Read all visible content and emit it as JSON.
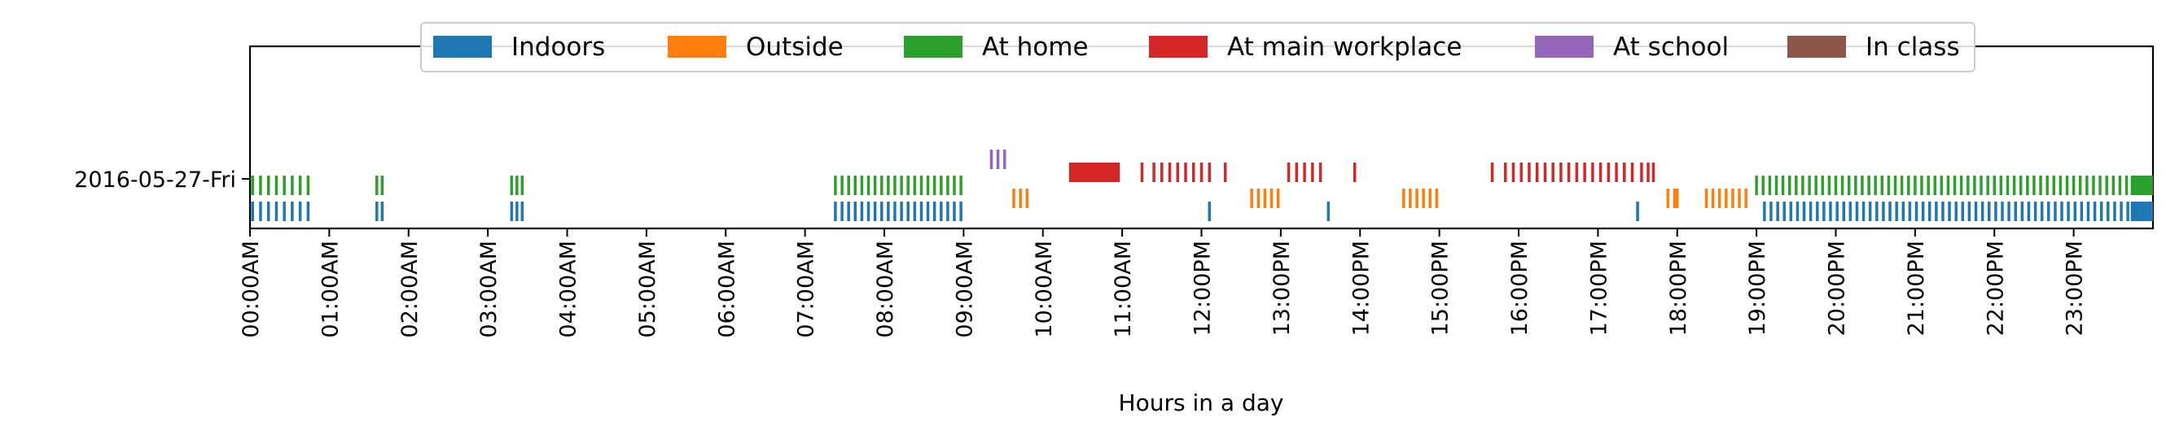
{
  "chart_data": {
    "type": "event-timeline",
    "xlabel": "Hours in a day",
    "y_categories": [
      "2016-05-27-Fri"
    ],
    "x_range_hours": [
      0,
      24
    ],
    "x_tick_labels": [
      "00:00AM",
      "01:00AM",
      "02:00AM",
      "03:00AM",
      "04:00AM",
      "05:00AM",
      "06:00AM",
      "07:00AM",
      "08:00AM",
      "09:00AM",
      "10:00AM",
      "11:00AM",
      "12:00PM",
      "13:00PM",
      "14:00PM",
      "15:00PM",
      "16:00PM",
      "17:00PM",
      "18:00PM",
      "19:00PM",
      "20:00PM",
      "21:00PM",
      "22:00PM",
      "23:00PM"
    ],
    "legend_position": "top-center",
    "series": [
      {
        "name": "Indoors",
        "color": "#1f77b4",
        "tick_hours": [
          0.033,
          0.133,
          0.233,
          0.333,
          0.433,
          0.533,
          0.633,
          0.733,
          1.6,
          1.667,
          3.3,
          3.367,
          3.433,
          7.383,
          7.467,
          7.55,
          7.633,
          7.717,
          7.8,
          7.883,
          7.967,
          8.05,
          8.133,
          8.217,
          8.3,
          8.383,
          8.467,
          8.55,
          8.633,
          8.717,
          8.8,
          8.883,
          8.967,
          12.1,
          13.6,
          17.5,
          19.1,
          19.183,
          19.267,
          19.35,
          19.433,
          19.517,
          19.6,
          19.683,
          19.767,
          19.85,
          19.933,
          20.017,
          20.1,
          20.183,
          20.267,
          20.35,
          20.433,
          20.517,
          20.6,
          20.683,
          20.767,
          20.85,
          20.933,
          21.017,
          21.1,
          21.183,
          21.267,
          21.35,
          21.433,
          21.517,
          21.6,
          21.683,
          21.767,
          21.85,
          21.933,
          22.017,
          22.1,
          22.183,
          22.267,
          22.35,
          22.433,
          22.517,
          22.6,
          22.683,
          22.767,
          22.85,
          22.933,
          23.017,
          23.1,
          23.183,
          23.267,
          23.35,
          23.433,
          23.517,
          23.6,
          23.683
        ],
        "blocks": [
          [
            23.72,
            24.0
          ]
        ]
      },
      {
        "name": "Outside",
        "color": "#ff7f0e",
        "tick_hours": [
          9.633,
          9.717,
          9.8,
          12.633,
          12.717,
          12.8,
          12.883,
          12.967,
          14.55,
          14.633,
          14.717,
          14.8,
          14.883,
          14.967,
          17.883,
          17.967,
          18.0,
          18.367,
          18.45,
          18.533,
          18.617,
          18.7,
          18.783,
          18.867
        ],
        "blocks": []
      },
      {
        "name": "At home",
        "color": "#2ca02c",
        "tick_hours": [
          0.033,
          0.133,
          0.233,
          0.333,
          0.433,
          0.533,
          0.633,
          0.733,
          1.6,
          1.667,
          3.3,
          3.367,
          3.433,
          7.383,
          7.467,
          7.55,
          7.633,
          7.717,
          7.8,
          7.883,
          7.967,
          8.05,
          8.133,
          8.217,
          8.3,
          8.383,
          8.467,
          8.55,
          8.633,
          8.717,
          8.8,
          8.883,
          8.967,
          19.0,
          19.083,
          19.167,
          19.25,
          19.333,
          19.417,
          19.5,
          19.583,
          19.667,
          19.75,
          19.833,
          19.917,
          20.0,
          20.083,
          20.167,
          20.25,
          20.333,
          20.417,
          20.5,
          20.583,
          20.667,
          20.75,
          20.833,
          20.917,
          21.0,
          21.083,
          21.167,
          21.25,
          21.333,
          21.417,
          21.5,
          21.583,
          21.667,
          21.75,
          21.833,
          21.917,
          22.0,
          22.083,
          22.167,
          22.25,
          22.333,
          22.417,
          22.5,
          22.583,
          22.667,
          22.75,
          22.833,
          22.917,
          23.0,
          23.083,
          23.167,
          23.25,
          23.333,
          23.417,
          23.5,
          23.583,
          23.667
        ],
        "blocks": [
          [
            23.72,
            24.0
          ]
        ]
      },
      {
        "name": "At main workplace",
        "color": "#d62728",
        "tick_hours": [
          11.25,
          11.4,
          11.5,
          11.6,
          11.7,
          11.8,
          11.9,
          12.0,
          12.1,
          12.3,
          13.1,
          13.2,
          13.3,
          13.4,
          13.5,
          13.933,
          15.667,
          15.833,
          15.933,
          16.033,
          16.133,
          16.233,
          16.333,
          16.433,
          16.533,
          16.633,
          16.733,
          16.833,
          16.933,
          17.033,
          17.133,
          17.233,
          17.333,
          17.433,
          17.55,
          17.633,
          17.7
        ],
        "blocks": [
          [
            10.33,
            10.97
          ]
        ]
      },
      {
        "name": "At school",
        "color": "#9467bd",
        "tick_hours": [
          9.35,
          9.433,
          9.517
        ],
        "blocks": []
      },
      {
        "name": "In class",
        "color": "#8c564b",
        "tick_hours": [],
        "blocks": []
      }
    ]
  }
}
